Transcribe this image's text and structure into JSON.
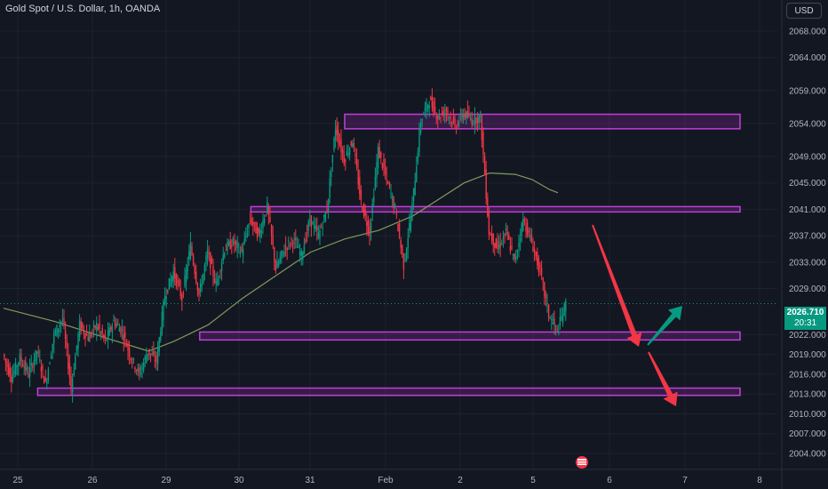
{
  "header": {
    "title": "Gold Spot / U.S. Dollar, 1h, OANDA",
    "currency": "USD"
  },
  "price_tag": {
    "price": "2026.710",
    "countdown": "20:31"
  },
  "colors": {
    "background": "#131722",
    "up": "#089981",
    "down": "#f23645",
    "zone": "#9c27b0",
    "ma": "#7e9c5c",
    "arrow_red": "#f23645",
    "arrow_green": "#089981"
  },
  "chart_data": {
    "type": "candlestick",
    "symbol": "Gold Spot / U.S. Dollar",
    "interval": "1h",
    "source": "OANDA",
    "x_ticks": [
      "25",
      "26",
      "29",
      "30",
      "31",
      "Feb",
      "2",
      "5",
      "6",
      "7",
      "8"
    ],
    "y_ticks": [
      "2068.000",
      "2064.000",
      "2059.000",
      "2054.000",
      "2049.000",
      "2045.000",
      "2041.000",
      "2037.000",
      "2033.000",
      "2029.000",
      "2022.000",
      "2019.000",
      "2016.000",
      "2013.000",
      "2010.000",
      "2007.000",
      "2004.000"
    ],
    "ylim": [
      2004,
      2070
    ],
    "last_price": 2026.71,
    "price_path": [
      [
        0,
        2019.0
      ],
      [
        1,
        2015.5
      ],
      [
        2,
        2018.5
      ],
      [
        3,
        2016.0
      ],
      [
        4,
        2019.5
      ],
      [
        5,
        2014.5
      ],
      [
        6,
        2022.0
      ],
      [
        7,
        2024.5
      ],
      [
        8,
        2014.0
      ],
      [
        9,
        2023.5
      ],
      [
        10,
        2021.5
      ],
      [
        11,
        2023.5
      ],
      [
        12,
        2021.0
      ],
      [
        13,
        2024.0
      ],
      [
        14,
        2022.5
      ],
      [
        15,
        2018.5
      ],
      [
        16,
        2016.0
      ],
      [
        17,
        2019.5
      ],
      [
        18,
        2018.0
      ],
      [
        19,
        2028.0
      ],
      [
        20,
        2031.5
      ],
      [
        21,
        2027.5
      ],
      [
        22,
        2035.5
      ],
      [
        23,
        2028.0
      ],
      [
        24,
        2034.5
      ],
      [
        25,
        2029.5
      ],
      [
        26,
        2035.0
      ],
      [
        27,
        2036.0
      ],
      [
        28,
        2034.5
      ],
      [
        29,
        2039.5
      ],
      [
        30,
        2037.0
      ],
      [
        31,
        2041.5
      ],
      [
        32,
        2032.0
      ],
      [
        33,
        2035.0
      ],
      [
        34,
        2036.5
      ],
      [
        35,
        2034.0
      ],
      [
        36,
        2039.5
      ],
      [
        37,
        2037.0
      ],
      [
        38,
        2041.0
      ],
      [
        39,
        2053.5
      ],
      [
        40,
        2048.5
      ],
      [
        41,
        2051.5
      ],
      [
        42,
        2042.0
      ],
      [
        43,
        2037.5
      ],
      [
        44,
        2050.0
      ],
      [
        45,
        2045.5
      ],
      [
        46,
        2041.0
      ],
      [
        47,
        2032.5
      ],
      [
        48,
        2041.5
      ],
      [
        49,
        2054.5
      ],
      [
        50,
        2057.5
      ],
      [
        51,
        2055.0
      ],
      [
        52,
        2056.0
      ],
      [
        53,
        2053.5
      ],
      [
        54,
        2055.5
      ],
      [
        55,
        2054.5
      ],
      [
        56,
        2055.0
      ],
      [
        57,
        2037.5
      ],
      [
        58,
        2035.0
      ],
      [
        59,
        2037.5
      ],
      [
        60,
        2033.0
      ],
      [
        61,
        2039.5
      ],
      [
        62,
        2036.0
      ],
      [
        63,
        2031.5
      ],
      [
        64,
        2025.0
      ],
      [
        65,
        2022.5
      ],
      [
        66,
        2026.71
      ]
    ],
    "moving_average": [
      [
        0,
        2026.0
      ],
      [
        6,
        2024.0
      ],
      [
        12,
        2021.5
      ],
      [
        17,
        2019.5
      ],
      [
        20,
        2021.0
      ],
      [
        24,
        2023.5
      ],
      [
        28,
        2027.5
      ],
      [
        32,
        2031.0
      ],
      [
        36,
        2034.5
      ],
      [
        40,
        2036.5
      ],
      [
        44,
        2037.8
      ],
      [
        48,
        2040.0
      ],
      [
        51,
        2042.5
      ],
      [
        54,
        2045.0
      ],
      [
        57,
        2046.5
      ],
      [
        60,
        2046.3
      ],
      [
        62,
        2045.5
      ],
      [
        64,
        2044.0
      ],
      [
        65,
        2043.5
      ]
    ],
    "zones": [
      {
        "y": [
          2053.2,
          2055.4
        ],
        "x_start": 40
      },
      {
        "y": [
          2040.6,
          2041.4
        ],
        "x_start": 29
      },
      {
        "y": [
          2021.2,
          2022.4
        ],
        "x_start": 23
      },
      {
        "y": [
          2012.8,
          2013.9
        ],
        "x_start": 4
      }
    ],
    "annotations": [
      {
        "type": "arrow",
        "color": "red",
        "from": [
          2040.0
        ],
        "to": [
          2022.0
        ],
        "label": ""
      },
      {
        "type": "arrow",
        "color": "green",
        "from": [
          2022.0
        ],
        "to": [
          2026.5
        ],
        "label": ""
      },
      {
        "type": "arrow",
        "color": "red",
        "from": [
          2021.5
        ],
        "to": [
          2013.0
        ],
        "label": ""
      }
    ],
    "grid": true,
    "legend": "none"
  }
}
